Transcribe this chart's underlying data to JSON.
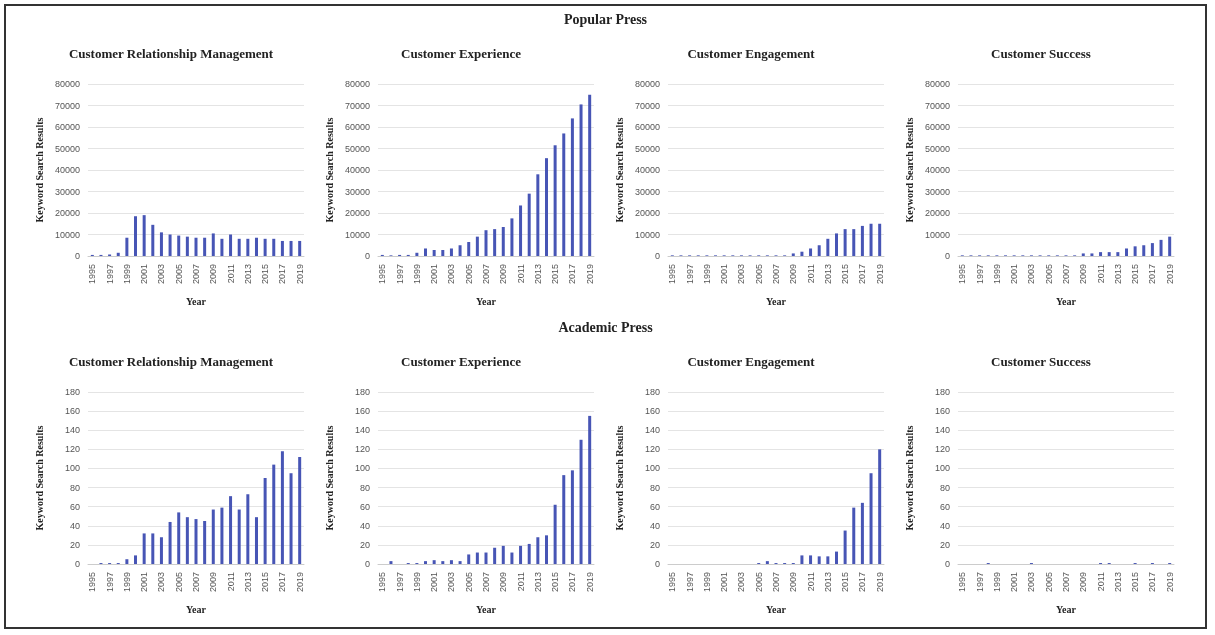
{
  "chart_data": [
    {
      "type": "bar",
      "title": "Customer Relationship Management",
      "annotations": [
        "Popular Press"
      ],
      "xlabel": "Year",
      "ylabel": "Keyword Search Results",
      "categories": [
        "1995",
        null,
        "1997",
        null,
        "1999",
        null,
        "2001",
        null,
        "2003",
        null,
        "2005",
        null,
        "2007",
        null,
        "2009",
        null,
        "2011",
        null,
        "2013",
        null,
        "2015",
        null,
        "2017",
        null,
        "2019"
      ],
      "color": "#4755b5",
      "values": [
        500,
        500,
        700,
        1500,
        8500,
        18500,
        19000,
        14500,
        11000,
        10000,
        9500,
        9000,
        8500,
        8500,
        10500,
        8000,
        10000,
        8000,
        8000,
        8500,
        8000,
        8000,
        7000,
        7000,
        7000
      ],
      "ylim": [
        0,
        80000
      ],
      "yticks": [
        0,
        10000,
        20000,
        30000,
        40000,
        50000,
        60000,
        70000,
        80000
      ],
      "grid": "y"
    },
    {
      "type": "bar",
      "title": "Customer Experience",
      "xlabel": "Year",
      "ylabel": "Keyword Search Results",
      "categories": [
        "1995",
        null,
        "1997",
        null,
        "1999",
        null,
        "2001",
        null,
        "2003",
        null,
        "2005",
        null,
        "2007",
        null,
        "2009",
        null,
        "2011",
        null,
        "2013",
        null,
        "2015",
        null,
        "2017",
        null,
        "2019"
      ],
      "color": "#4755b5",
      "values": [
        500,
        300,
        500,
        500,
        1500,
        3500,
        2800,
        2800,
        3500,
        5000,
        6500,
        9000,
        12000,
        12500,
        13500,
        17500,
        23500,
        29000,
        38000,
        45500,
        51500,
        57000,
        64000,
        70500,
        75000
      ],
      "ylim": [
        0,
        80000
      ],
      "yticks": [
        0,
        10000,
        20000,
        30000,
        40000,
        50000,
        60000,
        70000,
        80000
      ],
      "grid": "y"
    },
    {
      "type": "bar",
      "title": "Customer Engagement",
      "xlabel": "Year",
      "ylabel": "Keyword Search Results",
      "categories": [
        "1995",
        null,
        "1997",
        null,
        "1999",
        null,
        "2001",
        null,
        "2003",
        null,
        "2005",
        null,
        "2007",
        null,
        "2009",
        null,
        "2011",
        null,
        "2013",
        null,
        "2015",
        null,
        "2017",
        null,
        "2019"
      ],
      "color": "#4755b5",
      "values": [
        300,
        300,
        300,
        300,
        300,
        300,
        300,
        300,
        300,
        300,
        300,
        300,
        300,
        300,
        1200,
        2000,
        3500,
        5000,
        8000,
        10500,
        12500,
        12500,
        14000,
        15000,
        15000
      ],
      "ylim": [
        0,
        80000
      ],
      "yticks": [
        0,
        10000,
        20000,
        30000,
        40000,
        50000,
        60000,
        70000,
        80000
      ],
      "grid": "y"
    },
    {
      "type": "bar",
      "title": "Customer Success",
      "xlabel": "Year",
      "ylabel": "Keyword Search Results",
      "categories": [
        "1995",
        null,
        "1997",
        null,
        "1999",
        null,
        "2001",
        null,
        "2003",
        null,
        "2005",
        null,
        "2007",
        null,
        "2009",
        null,
        "2011",
        null,
        "2013",
        null,
        "2015",
        null,
        "2017",
        null,
        "2019"
      ],
      "color": "#4755b5",
      "values": [
        300,
        300,
        300,
        300,
        300,
        300,
        300,
        300,
        300,
        300,
        300,
        300,
        300,
        300,
        1200,
        1200,
        1800,
        1800,
        1800,
        3500,
        4500,
        5000,
        6000,
        7500,
        9000
      ],
      "ylim": [
        0,
        80000
      ],
      "yticks": [
        0,
        10000,
        20000,
        30000,
        40000,
        50000,
        60000,
        70000,
        80000
      ],
      "grid": "y"
    },
    {
      "type": "bar",
      "title": "Customer Relationship Management",
      "annotations": [
        "Academic Press"
      ],
      "xlabel": "Year",
      "ylabel": "Keyword Search Results",
      "categories": [
        "1995",
        null,
        "1997",
        null,
        "1999",
        null,
        "2001",
        null,
        "2003",
        null,
        "2005",
        null,
        "2007",
        null,
        "2009",
        null,
        "2011",
        null,
        "2013",
        null,
        "2015",
        null,
        "2017",
        null,
        "2019"
      ],
      "color": "#4755b5",
      "values": [
        0,
        1,
        1,
        1,
        5,
        9,
        32,
        32,
        28,
        44,
        54,
        49,
        47,
        45,
        57,
        59,
        71,
        57,
        73,
        49,
        90,
        104,
        118,
        95,
        112
      ],
      "ylim": [
        0,
        180
      ],
      "yticks": [
        0,
        20,
        40,
        60,
        80,
        100,
        120,
        140,
        160,
        180
      ],
      "grid": "y"
    },
    {
      "type": "bar",
      "title": "Customer Experience",
      "xlabel": "Year",
      "ylabel": "Keyword Search Results",
      "categories": [
        "1995",
        null,
        "1997",
        null,
        "1999",
        null,
        "2001",
        null,
        "2003",
        null,
        "2005",
        null,
        "2007",
        null,
        "2009",
        null,
        "2011",
        null,
        "2013",
        null,
        "2015",
        null,
        "2017",
        null,
        "2019"
      ],
      "color": "#4755b5",
      "values": [
        0,
        3,
        0,
        1,
        1,
        3,
        4,
        3,
        4,
        3,
        10,
        12,
        12,
        17,
        19,
        12,
        19,
        21,
        28,
        30,
        62,
        93,
        98,
        130,
        155
      ],
      "ylim": [
        0,
        180
      ],
      "yticks": [
        0,
        20,
        40,
        60,
        80,
        100,
        120,
        140,
        160,
        180
      ],
      "grid": "y"
    },
    {
      "type": "bar",
      "title": "Customer Engagement",
      "xlabel": "Year",
      "ylabel": "Keyword Search Results",
      "categories": [
        "1995",
        null,
        "1997",
        null,
        "1999",
        null,
        "2001",
        null,
        "2003",
        null,
        "2005",
        null,
        "2007",
        null,
        "2009",
        null,
        "2011",
        null,
        "2013",
        null,
        "2015",
        null,
        "2017",
        null,
        "2019"
      ],
      "color": "#4755b5",
      "values": [
        0,
        0,
        0,
        0,
        0,
        0,
        0,
        0,
        0,
        0,
        1,
        3,
        1,
        1,
        1,
        9,
        9,
        8,
        8,
        13,
        35,
        59,
        64,
        95,
        120
      ],
      "ylim": [
        0,
        180
      ],
      "yticks": [
        0,
        20,
        40,
        60,
        80,
        100,
        120,
        140,
        160,
        180
      ],
      "grid": "y"
    },
    {
      "type": "bar",
      "title": "Customer Success",
      "xlabel": "Year",
      "ylabel": "Keyword Search Results",
      "categories": [
        "1995",
        null,
        "1997",
        null,
        "1999",
        null,
        "2001",
        null,
        "2003",
        null,
        "2005",
        null,
        "2007",
        null,
        "2009",
        null,
        "2011",
        null,
        "2013",
        null,
        "2015",
        null,
        "2017",
        null,
        "2019"
      ],
      "color": "#4755b5",
      "values": [
        0,
        0,
        0,
        1,
        0,
        0,
        0,
        0,
        1,
        0,
        0,
        0,
        0,
        0,
        0,
        0,
        1,
        1,
        0,
        0,
        1,
        0,
        1,
        0,
        1
      ],
      "ylim": [
        0,
        180
      ],
      "yticks": [
        0,
        20,
        40,
        60,
        80,
        100,
        120,
        140,
        160,
        180
      ],
      "grid": "y"
    }
  ]
}
